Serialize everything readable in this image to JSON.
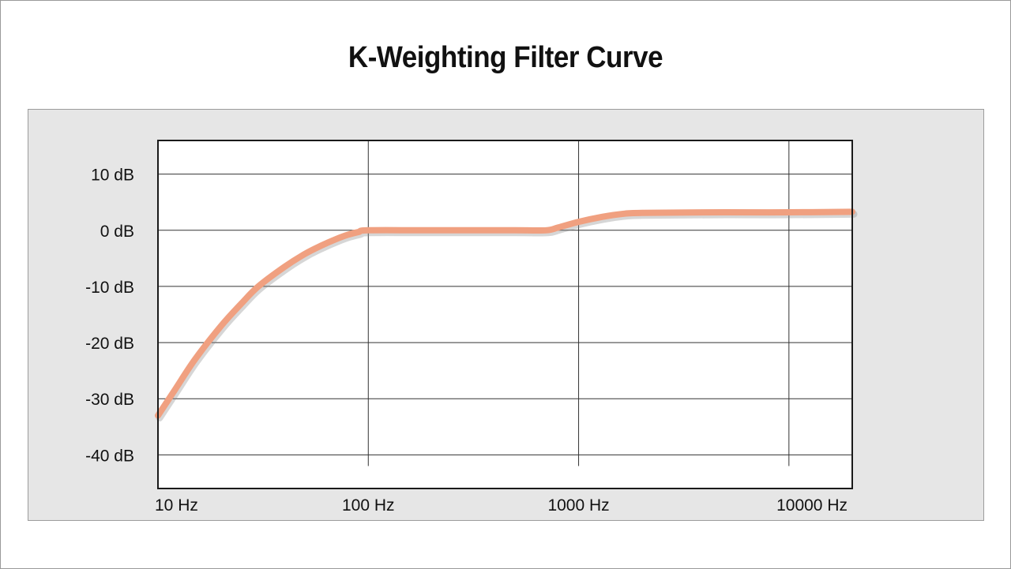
{
  "chart_data": {
    "type": "line",
    "title": "K-Weighting Filter Curve",
    "xlabel": "",
    "ylabel": "",
    "x_scale": "log",
    "xlim": [
      10,
      20000
    ],
    "ylim": [
      -46,
      16
    ],
    "x_ticks": [
      10,
      100,
      1000,
      10000
    ],
    "x_tick_labels": [
      "10 Hz",
      "100 Hz",
      "1000 Hz",
      "10000 Hz"
    ],
    "y_ticks": [
      10,
      0,
      -10,
      -20,
      -30,
      -40
    ],
    "y_tick_labels": [
      "10 dB",
      "0 dB",
      "-10 dB",
      "-20 dB",
      "-30 dB",
      "-40 dB"
    ],
    "grid": true,
    "legend": "none",
    "series": [
      {
        "color": "#f0a080",
        "x": [
          10,
          12,
          15,
          20,
          25,
          30,
          40,
          50,
          60,
          70,
          80,
          90,
          100,
          200,
          500,
          700,
          800,
          1000,
          1300,
          1600,
          2000,
          5000,
          10000,
          20000
        ],
        "y": [
          -33,
          -28.5,
          -23,
          -17,
          -13,
          -10,
          -6.5,
          -4.2,
          -2.7,
          -1.6,
          -0.8,
          -0.3,
          0,
          0,
          0,
          0,
          0.5,
          1.5,
          2.4,
          2.9,
          3.1,
          3.2,
          3.2,
          3.3
        ]
      }
    ],
    "colors": {
      "curve": "#f0a080",
      "panel_background": "#e6e6e6",
      "plot_background": "#ffffff",
      "grid": "#333333"
    }
  }
}
